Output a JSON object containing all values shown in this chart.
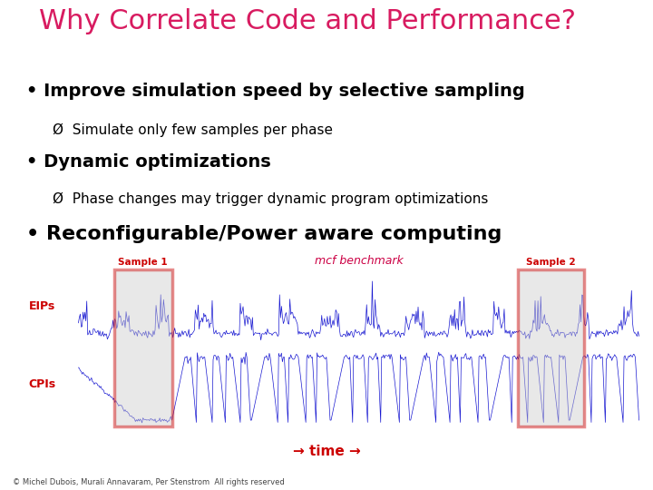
{
  "title": "Why Correlate Code and Performance?",
  "title_color": "#D81B60",
  "title_fontsize": 22,
  "bullet1": "Improve simulation speed by selective sampling",
  "sub1": "Ø  Simulate only few samples per phase",
  "bullet2": "Dynamic optimizations",
  "sub2": "Ø  Phase changes may trigger dynamic program optimizations",
  "bullet3": "Reconfigurable/Power aware computing",
  "bullet_color": "#000000",
  "bullet_fontsize": 14,
  "sub_fontsize": 11,
  "chart_title": "mcf benchmark",
  "chart_title_color": "#CC0044",
  "sample1_label": "Sample 1",
  "sample2_label": "Sample 2",
  "sample_label_color": "#CC0000",
  "eips_label": "EIPs",
  "cpis_label": "CPIs",
  "label_color": "#CC0000",
  "signal_color": "#0000CC",
  "time_label": "→ time →",
  "time_color": "#CC0000",
  "footer": "© Michel Dubois, Murali Annavaram, Per Stenstrom  All rights reserved",
  "footer_fontsize": 6,
  "background_color": "#FFFFFF"
}
